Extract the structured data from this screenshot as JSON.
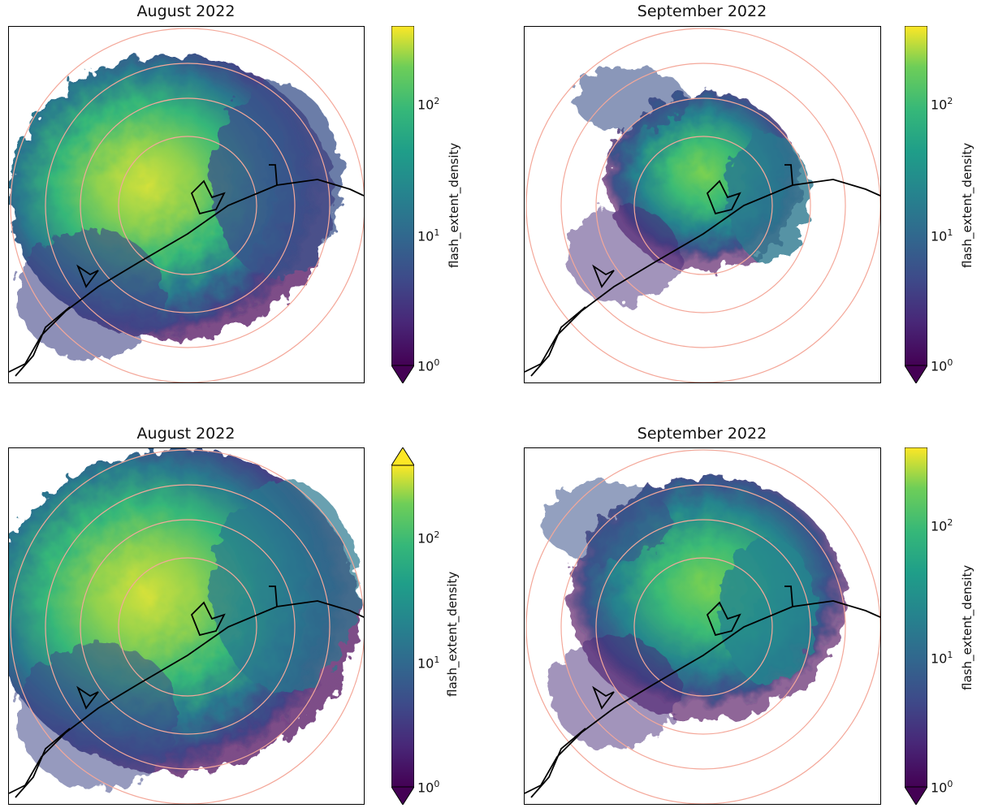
{
  "colormap": "viridis",
  "ring_color": "#f4a89a",
  "coast_color": "#000000",
  "panels": [
    {
      "id": "tl",
      "title": "August 2022",
      "colorbar": {
        "label": "flash_extent_density",
        "ticks": [
          "10",
          "10",
          "10"
        ],
        "tick_exp": [
          "0",
          "1",
          "2"
        ],
        "extend_top": false,
        "extend_bottom": true
      }
    },
    {
      "id": "tr",
      "title": "September 2022",
      "colorbar": {
        "label": "flash_extent_density",
        "ticks": [
          "10",
          "10",
          "10"
        ],
        "tick_exp": [
          "0",
          "1",
          "2"
        ],
        "extend_top": false,
        "extend_bottom": true
      }
    },
    {
      "id": "bl",
      "title": "August 2022",
      "colorbar": {
        "label": "flash_extent_density",
        "ticks": [
          "10",
          "10",
          "10"
        ],
        "tick_exp": [
          "0",
          "1",
          "2"
        ],
        "extend_top": true,
        "extend_bottom": true
      }
    },
    {
      "id": "br",
      "title": "September 2022",
      "colorbar": {
        "label": "flash_extent_density",
        "ticks": [
          "10",
          "10",
          "10"
        ],
        "tick_exp": [
          "0",
          "1",
          "2"
        ],
        "extend_top": false,
        "extend_bottom": true
      }
    }
  ]
}
